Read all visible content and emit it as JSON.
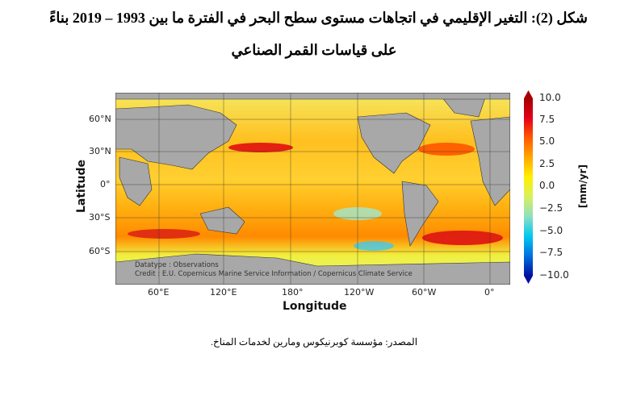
{
  "caption": {
    "line1": "شكل (2): التغير الإقليمي في اتجاهات مستوى سطح البحر في الفترة ما بين 1993 – 2019 بناءً",
    "line2": "على قياسات القمر الصناعي"
  },
  "map": {
    "xlabel": "Longitude",
    "ylabel": "Latitude",
    "lat_ticks": [
      "60°N",
      "30°N",
      "0°",
      "30°S",
      "60°S"
    ],
    "lon_ticks": [
      "60°E",
      "120°E",
      "180°",
      "120°W",
      "60°W",
      "0°"
    ],
    "datatype": "Datatype : Observations",
    "credit": "Credit : E.U. Copernicus Marine Service Information / Copernicus Climate Service",
    "colorbar": {
      "label": "[mm/yr]",
      "ticks": [
        "10.0",
        "7.5",
        "5.0",
        "2.5",
        "0.0",
        "−2.5",
        "−5.0",
        "−7.5",
        "−10.0"
      ],
      "range": [
        -10,
        10
      ],
      "colors": [
        "#a50000",
        "#ff5a00",
        "#fff000",
        "#8ee0c0",
        "#0010a0"
      ]
    }
  },
  "source": "المصدر: مؤسسة كوبرنيكوس ومارين لخدمات المناخ."
}
